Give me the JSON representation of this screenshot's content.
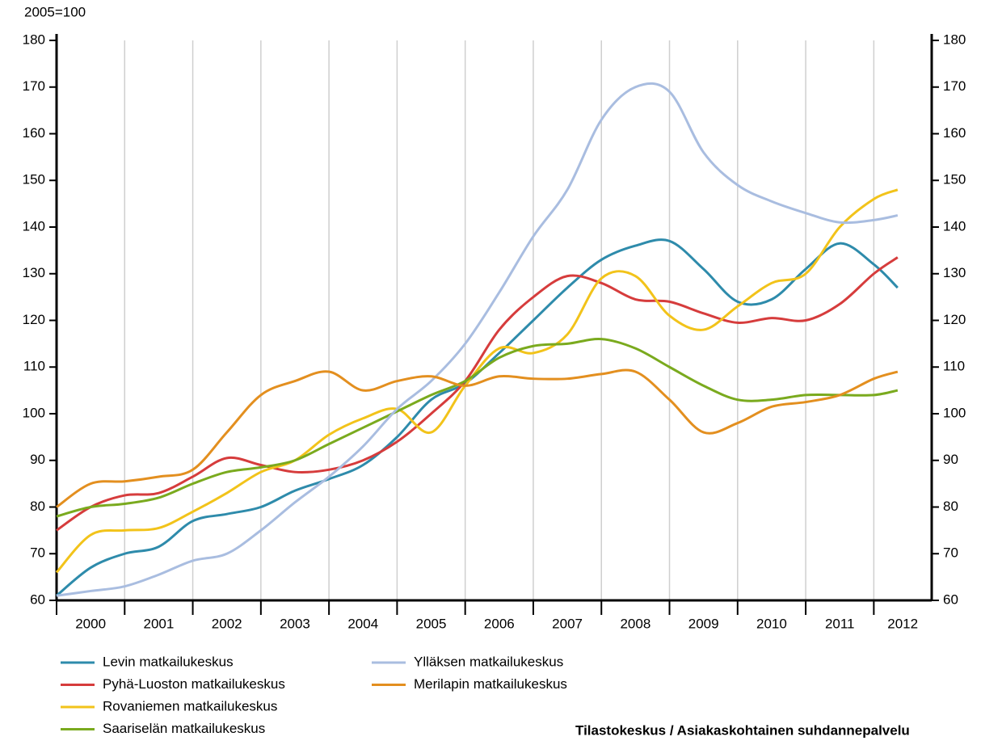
{
  "chart_data": {
    "type": "line",
    "y_label": "2005=100",
    "source": "Tilastokeskus / Asiakaskohtainen suhdannepalvelu",
    "x": [
      2000,
      2000.5,
      2001,
      2001.5,
      2002,
      2002.5,
      2003,
      2003.5,
      2004,
      2004.5,
      2005,
      2005.5,
      2006,
      2006.5,
      2007,
      2007.5,
      2008,
      2008.5,
      2009,
      2009.5,
      2010,
      2010.5,
      2011,
      2011.5,
      2012,
      2012.35
    ],
    "xlim": [
      2000,
      2012.85
    ],
    "xticks": [
      2000,
      2001,
      2002,
      2003,
      2004,
      2005,
      2006,
      2007,
      2008,
      2009,
      2010,
      2011,
      2012
    ],
    "ylim": [
      60,
      180
    ],
    "yticks": [
      60,
      70,
      80,
      90,
      100,
      110,
      120,
      130,
      140,
      150,
      160,
      170,
      180
    ],
    "grid": true,
    "series": [
      {
        "name": "Levin matkailukeskus",
        "color": "#2e8bab",
        "values": [
          61,
          67,
          70,
          71.5,
          77,
          78.5,
          80,
          83.5,
          86,
          89,
          95,
          103,
          106.5,
          113,
          120,
          127,
          133,
          136,
          137,
          131,
          124,
          124.5,
          131,
          136.5,
          132,
          127
        ]
      },
      {
        "name": "Pyhä-Luoston matkailukeskus",
        "color": "#d63c3c",
        "values": [
          75,
          80,
          82.5,
          83,
          86.5,
          90.5,
          89,
          87.5,
          88,
          90,
          94,
          100,
          107,
          118,
          125,
          129.5,
          128,
          124.5,
          124,
          121.5,
          119.5,
          120.5,
          120,
          123.5,
          130,
          133.5
        ]
      },
      {
        "name": "Rovaniemen matkailukeskus",
        "color": "#f2c31a",
        "values": [
          66,
          74,
          75,
          75.5,
          79,
          83,
          87.5,
          90,
          95.5,
          99,
          101,
          96,
          106,
          114,
          113,
          117,
          129,
          129.5,
          121,
          118,
          123,
          128,
          130,
          140,
          146,
          148
        ]
      },
      {
        "name": "Saariselän matkailukeskus",
        "color": "#7aaa1e",
        "values": [
          78,
          80,
          80.7,
          82,
          85,
          87.5,
          88.5,
          90,
          93.5,
          97,
          100.5,
          104,
          107,
          112,
          114.5,
          115,
          116,
          114,
          110,
          106,
          103,
          103,
          104,
          104,
          104,
          105
        ]
      },
      {
        "name": "Ylläksen matkailukeskus",
        "color": "#a9bde0",
        "values": [
          61,
          62,
          63,
          65.5,
          68.5,
          70,
          75,
          81,
          86.5,
          93,
          101,
          107,
          115,
          126,
          138,
          148,
          163,
          170,
          169,
          156,
          149,
          145.5,
          143,
          141,
          141.5,
          142.5
        ]
      },
      {
        "name": "Merilapin matkailukeskus",
        "color": "#e38f1f",
        "values": [
          80,
          85,
          85.5,
          86.5,
          88,
          96,
          104,
          107,
          109,
          105,
          107,
          108,
          106,
          108,
          107.5,
          107.5,
          108.5,
          109,
          103,
          96,
          98,
          101.5,
          102.5,
          104,
          107.5,
          109
        ]
      }
    ]
  }
}
